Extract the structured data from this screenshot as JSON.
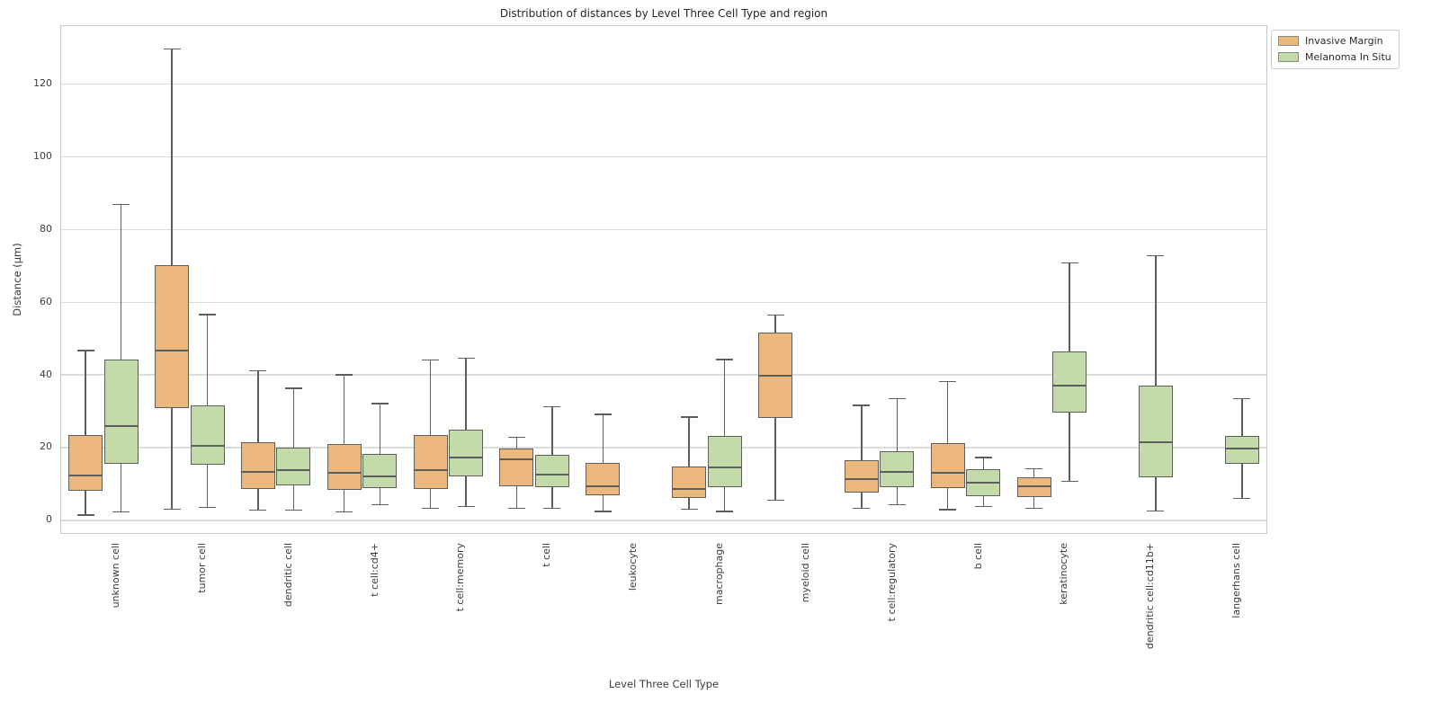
{
  "figure": {
    "title": "Distribution of distances by Level Three Cell Type and region"
  },
  "chart_data": {
    "type": "boxplot",
    "title": "Distribution of distances by Level Three Cell Type and region",
    "xlabel": "Level Three Cell Type",
    "ylabel": "Distance (µm)",
    "ylim": [
      -4,
      136
    ],
    "yticks": [
      0,
      20,
      40,
      60,
      80,
      100,
      120
    ],
    "grid": true,
    "legend_position": "outside upper right",
    "line_color": "#5d5d5d",
    "categories": [
      "unknown cell",
      "tumor cell",
      "dendritic cell",
      "t cell:cd4+",
      "t cell:memory",
      "t cell",
      "leukocyte",
      "macrophage",
      "myeloid cell",
      "t cell:regulatory",
      "b cell",
      "keratinocyte",
      "dendritic cell:cd11b+",
      "langerhans cell"
    ],
    "series": [
      {
        "name": "Invasive Margin",
        "color": "#ecb87e",
        "boxes": [
          {
            "whislo": 1.2,
            "q1": 7.8,
            "med": 12.2,
            "q3": 23.1,
            "whishi": 46.5
          },
          {
            "whislo": 2.8,
            "q1": 30.7,
            "med": 46.4,
            "q3": 69.9,
            "whishi": 129.5
          },
          {
            "whislo": 2.5,
            "q1": 8.4,
            "med": 13.1,
            "q3": 21.2,
            "whishi": 40.9
          },
          {
            "whislo": 2.0,
            "q1": 8.1,
            "med": 12.8,
            "q3": 20.8,
            "whishi": 39.8
          },
          {
            "whislo": 3.0,
            "q1": 8.4,
            "med": 13.5,
            "q3": 23.2,
            "whishi": 43.8
          },
          {
            "whislo": 3.0,
            "q1": 9.0,
            "med": 16.6,
            "q3": 19.6,
            "whishi": 22.6
          },
          {
            "whislo": 2.2,
            "q1": 6.6,
            "med": 9.2,
            "q3": 15.6,
            "whishi": 28.9
          },
          {
            "whislo": 2.8,
            "q1": 5.8,
            "med": 8.3,
            "q3": 14.6,
            "whishi": 28.2
          },
          {
            "whislo": 5.2,
            "q1": 27.8,
            "med": 39.5,
            "q3": 51.4,
            "whishi": 56.2
          },
          {
            "whislo": 3.0,
            "q1": 7.4,
            "med": 11.0,
            "q3": 16.4,
            "whishi": 31.4
          },
          {
            "whislo": 2.7,
            "q1": 8.6,
            "med": 12.8,
            "q3": 21.0,
            "whishi": 38.0
          },
          {
            "whislo": 3.0,
            "q1": 6.2,
            "med": 9.2,
            "q3": 11.7,
            "whishi": 14.0
          },
          null,
          null
        ]
      },
      {
        "name": "Melanoma In Situ",
        "color": "#c3dba8",
        "boxes": [
          {
            "whislo": 2.0,
            "q1": 15.3,
            "med": 25.7,
            "q3": 44.0,
            "whishi": 86.7
          },
          {
            "whislo": 3.3,
            "q1": 15.1,
            "med": 20.3,
            "q3": 31.4,
            "whishi": 56.4
          },
          {
            "whislo": 2.5,
            "q1": 9.4,
            "med": 13.6,
            "q3": 19.8,
            "whishi": 36.1
          },
          {
            "whislo": 4.0,
            "q1": 8.6,
            "med": 11.9,
            "q3": 17.9,
            "whishi": 31.9
          },
          {
            "whislo": 3.5,
            "q1": 11.9,
            "med": 17.0,
            "q3": 24.8,
            "whishi": 44.3
          },
          {
            "whislo": 3.0,
            "q1": 8.9,
            "med": 12.3,
            "q3": 17.8,
            "whishi": 31.0
          },
          null,
          {
            "whislo": 2.2,
            "q1": 8.9,
            "med": 14.3,
            "q3": 23.0,
            "whishi": 44.0
          },
          null,
          {
            "whislo": 4.0,
            "q1": 8.9,
            "med": 13.1,
            "q3": 18.8,
            "whishi": 33.3
          },
          {
            "whislo": 3.5,
            "q1": 6.4,
            "med": 10.1,
            "q3": 13.8,
            "whishi": 17.0
          },
          {
            "whislo": 10.5,
            "q1": 29.5,
            "med": 36.7,
            "q3": 46.2,
            "whishi": 70.5
          },
          {
            "whislo": 2.3,
            "q1": 11.5,
            "med": 21.2,
            "q3": 36.8,
            "whishi": 72.6
          },
          {
            "whislo": 5.7,
            "q1": 15.4,
            "med": 19.6,
            "q3": 22.9,
            "whishi": 33.3
          }
        ]
      }
    ]
  }
}
